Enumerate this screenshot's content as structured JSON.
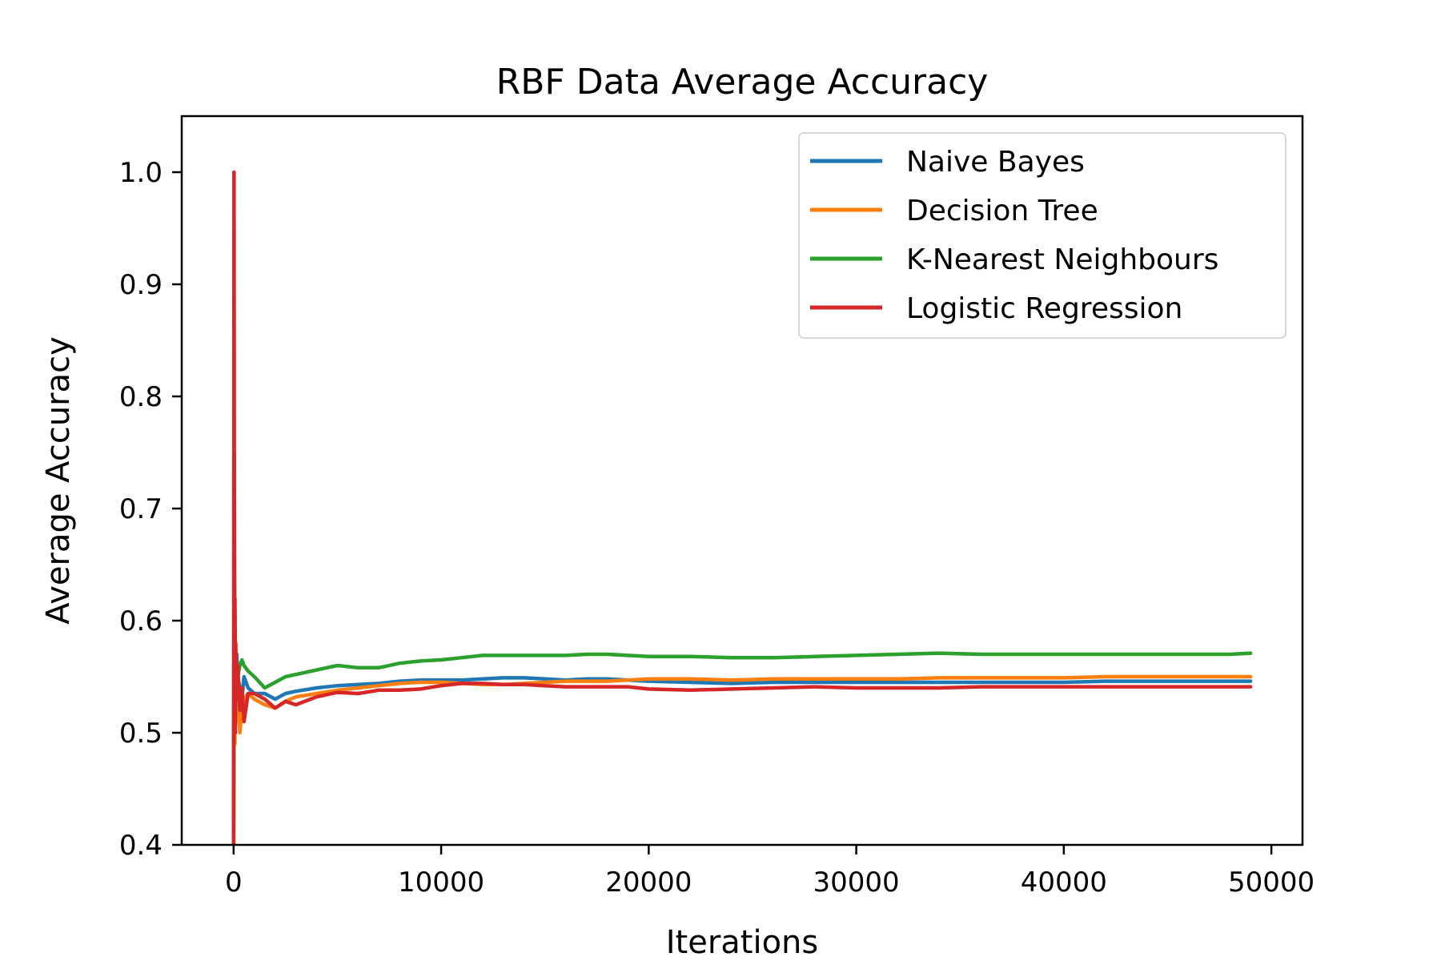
{
  "chart_data": {
    "type": "line",
    "title": "RBF Data Average Accuracy",
    "xlabel": "Iterations",
    "ylabel": "Average Accuracy",
    "xlim": [
      -2500,
      51500
    ],
    "ylim": [
      0.4,
      1.05
    ],
    "xticks": [
      0,
      10000,
      20000,
      30000,
      40000,
      50000
    ],
    "xtick_labels": [
      "0",
      "10000",
      "20000",
      "30000",
      "40000",
      "50000"
    ],
    "yticks": [
      0.4,
      0.5,
      0.6,
      0.7,
      0.8,
      0.9,
      1.0
    ],
    "ytick_labels": [
      "0.4",
      "0.5",
      "0.6",
      "0.7",
      "0.8",
      "0.9",
      "1.0"
    ],
    "grid": false,
    "legend_position": "top-right",
    "series": [
      {
        "name": "Naive Bayes",
        "color": "#1f77b4",
        "x": [
          0,
          30,
          60,
          100,
          150,
          200,
          300,
          400,
          500,
          700,
          1000,
          1500,
          2000,
          2500,
          3000,
          4000,
          5000,
          6000,
          7000,
          8000,
          9000,
          10000,
          11000,
          12000,
          13000,
          14000,
          15000,
          16000,
          17000,
          18000,
          19000,
          20000,
          22000,
          24000,
          26000,
          28000,
          30000,
          32000,
          34000,
          36000,
          38000,
          40000,
          42000,
          44000,
          46000,
          48000,
          49000
        ],
        "y": [
          0.4,
          0.75,
          0.58,
          0.52,
          0.57,
          0.55,
          0.54,
          0.53,
          0.55,
          0.54,
          0.535,
          0.535,
          0.53,
          0.535,
          0.537,
          0.54,
          0.542,
          0.543,
          0.544,
          0.546,
          0.547,
          0.547,
          0.547,
          0.548,
          0.549,
          0.549,
          0.548,
          0.547,
          0.548,
          0.548,
          0.547,
          0.546,
          0.545,
          0.544,
          0.545,
          0.545,
          0.545,
          0.545,
          0.545,
          0.545,
          0.545,
          0.545,
          0.546,
          0.546,
          0.546,
          0.546,
          0.546
        ]
      },
      {
        "name": "Decision Tree",
        "color": "#ff7f0e",
        "x": [
          0,
          30,
          60,
          100,
          150,
          200,
          300,
          400,
          500,
          700,
          1000,
          1500,
          2000,
          2500,
          3000,
          4000,
          5000,
          6000,
          7000,
          8000,
          9000,
          10000,
          11000,
          12000,
          13000,
          14000,
          15000,
          16000,
          17000,
          18000,
          19000,
          20000,
          22000,
          24000,
          26000,
          28000,
          30000,
          32000,
          34000,
          36000,
          38000,
          40000,
          42000,
          44000,
          46000,
          48000,
          49000
        ],
        "y": [
          0.4,
          0.6,
          0.49,
          0.55,
          0.51,
          0.53,
          0.5,
          0.52,
          0.53,
          0.535,
          0.53,
          0.525,
          0.522,
          0.528,
          0.532,
          0.535,
          0.538,
          0.54,
          0.542,
          0.544,
          0.545,
          0.545,
          0.544,
          0.543,
          0.543,
          0.544,
          0.545,
          0.546,
          0.546,
          0.546,
          0.547,
          0.548,
          0.548,
          0.547,
          0.548,
          0.548,
          0.548,
          0.548,
          0.549,
          0.549,
          0.549,
          0.549,
          0.55,
          0.55,
          0.55,
          0.55,
          0.55
        ]
      },
      {
        "name": "K-Nearest Neighbours",
        "color": "#2ca02c",
        "x": [
          0,
          30,
          60,
          100,
          150,
          200,
          300,
          400,
          500,
          700,
          1000,
          1500,
          2000,
          2500,
          3000,
          4000,
          5000,
          6000,
          7000,
          8000,
          9000,
          10000,
          11000,
          12000,
          13000,
          14000,
          15000,
          16000,
          17000,
          18000,
          19000,
          20000,
          22000,
          24000,
          26000,
          28000,
          30000,
          32000,
          34000,
          36000,
          38000,
          40000,
          42000,
          44000,
          46000,
          48000,
          49000
        ],
        "y": [
          0.4,
          0.58,
          0.62,
          0.54,
          0.56,
          0.55,
          0.56,
          0.565,
          0.56,
          0.555,
          0.55,
          0.54,
          0.545,
          0.55,
          0.552,
          0.556,
          0.56,
          0.558,
          0.558,
          0.562,
          0.564,
          0.565,
          0.567,
          0.569,
          0.569,
          0.569,
          0.569,
          0.569,
          0.57,
          0.57,
          0.569,
          0.568,
          0.568,
          0.567,
          0.567,
          0.568,
          0.569,
          0.57,
          0.571,
          0.57,
          0.57,
          0.57,
          0.57,
          0.57,
          0.57,
          0.57,
          0.571
        ]
      },
      {
        "name": "Logistic Regression",
        "color": "#d62728",
        "x": [
          0,
          20,
          40,
          60,
          80,
          100,
          150,
          200,
          300,
          400,
          500,
          700,
          1000,
          1500,
          2000,
          2500,
          3000,
          4000,
          5000,
          6000,
          7000,
          8000,
          9000,
          10000,
          11000,
          12000,
          13000,
          14000,
          15000,
          16000,
          17000,
          18000,
          19000,
          20000,
          22000,
          24000,
          26000,
          28000,
          30000,
          32000,
          34000,
          36000,
          38000,
          40000,
          42000,
          44000,
          46000,
          48000,
          49000
        ],
        "y": [
          0.4,
          1.0,
          0.55,
          0.62,
          0.5,
          0.58,
          0.53,
          0.56,
          0.52,
          0.54,
          0.51,
          0.535,
          0.535,
          0.53,
          0.522,
          0.528,
          0.525,
          0.532,
          0.536,
          0.535,
          0.538,
          0.538,
          0.539,
          0.542,
          0.544,
          0.544,
          0.543,
          0.543,
          0.542,
          0.541,
          0.541,
          0.541,
          0.541,
          0.539,
          0.538,
          0.539,
          0.54,
          0.541,
          0.54,
          0.54,
          0.54,
          0.541,
          0.541,
          0.541,
          0.541,
          0.541,
          0.541,
          0.541,
          0.541
        ]
      }
    ]
  }
}
